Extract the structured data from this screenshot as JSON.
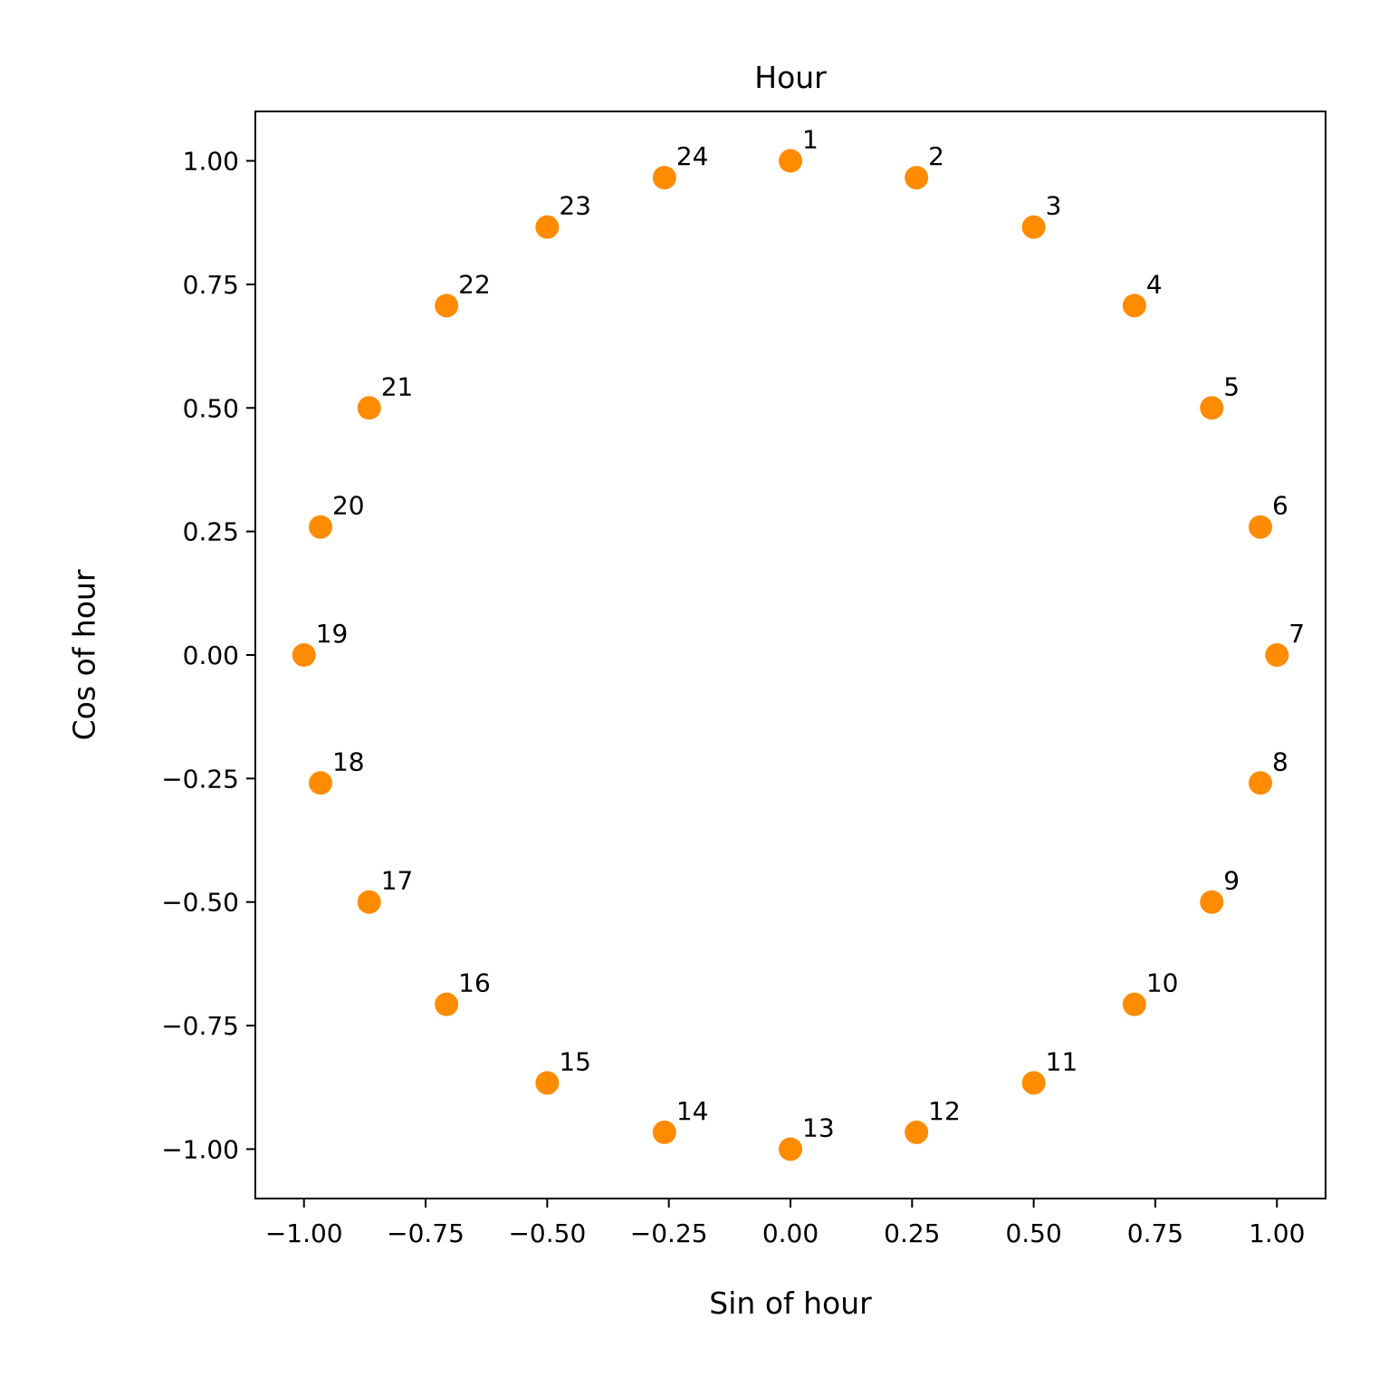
{
  "chart_data": {
    "type": "scatter",
    "title": "Hour",
    "xlabel": "Sin of hour",
    "ylabel": "Cos of hour",
    "xlim": [
      -1.1,
      1.1
    ],
    "ylim": [
      -1.1,
      1.1
    ],
    "xticks": [
      "−1.00",
      "−0.75",
      "−0.50",
      "−0.25",
      "0.00",
      "0.25",
      "0.50",
      "0.75",
      "1.00"
    ],
    "yticks": [
      "1.00",
      "0.75",
      "0.50",
      "0.25",
      "0.00",
      "−0.25",
      "−0.50",
      "−0.75",
      "−1.00"
    ],
    "xtick_values": [
      -1.0,
      -0.75,
      -0.5,
      -0.25,
      0.0,
      0.25,
      0.5,
      0.75,
      1.0
    ],
    "ytick_values": [
      1.0,
      0.75,
      0.5,
      0.25,
      0.0,
      -0.25,
      -0.5,
      -0.75,
      -1.0
    ],
    "grid": false,
    "marker_color": "#ff8c00",
    "points": [
      {
        "label": "1",
        "x": 0.0,
        "y": 1.0
      },
      {
        "label": "2",
        "x": 0.259,
        "y": 0.966
      },
      {
        "label": "3",
        "x": 0.5,
        "y": 0.866
      },
      {
        "label": "4",
        "x": 0.707,
        "y": 0.707
      },
      {
        "label": "5",
        "x": 0.866,
        "y": 0.5
      },
      {
        "label": "6",
        "x": 0.966,
        "y": 0.259
      },
      {
        "label": "7",
        "x": 1.0,
        "y": 0.0
      },
      {
        "label": "8",
        "x": 0.966,
        "y": -0.259
      },
      {
        "label": "9",
        "x": 0.866,
        "y": -0.5
      },
      {
        "label": "10",
        "x": 0.707,
        "y": -0.707
      },
      {
        "label": "11",
        "x": 0.5,
        "y": -0.866
      },
      {
        "label": "12",
        "x": 0.259,
        "y": -0.966
      },
      {
        "label": "13",
        "x": 0.0,
        "y": -1.0
      },
      {
        "label": "14",
        "x": -0.259,
        "y": -0.966
      },
      {
        "label": "15",
        "x": -0.5,
        "y": -0.866
      },
      {
        "label": "16",
        "x": -0.707,
        "y": -0.707
      },
      {
        "label": "17",
        "x": -0.866,
        "y": -0.5
      },
      {
        "label": "18",
        "x": -0.966,
        "y": -0.259
      },
      {
        "label": "19",
        "x": -1.0,
        "y": 0.0
      },
      {
        "label": "20",
        "x": -0.966,
        "y": 0.259
      },
      {
        "label": "21",
        "x": -0.866,
        "y": 0.5
      },
      {
        "label": "22",
        "x": -0.707,
        "y": 0.707
      },
      {
        "label": "23",
        "x": -0.5,
        "y": 0.866
      },
      {
        "label": "24",
        "x": -0.259,
        "y": 0.966
      }
    ]
  }
}
